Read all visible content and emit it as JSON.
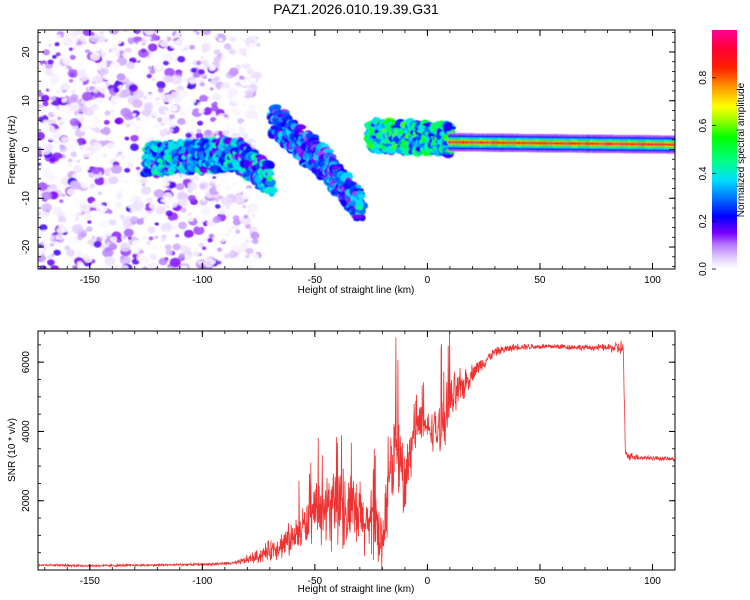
{
  "figure": {
    "title": "PAZ1.2026.010.19.39.G31"
  },
  "chart_data": [
    {
      "type": "heatmap",
      "title": "PAZ1.2026.010.19.39.G31",
      "xlabel": "Height of straight line (km)",
      "ylabel": "Frequency (Hz)",
      "xlim": [
        -173,
        110
      ],
      "ylim": [
        -24.5,
        24.5
      ],
      "xticks": [
        -150,
        -100,
        -50,
        0,
        50,
        100
      ],
      "yticks": [
        -20,
        -10,
        0,
        10,
        20
      ],
      "colorbar": {
        "label": "Normalized spectral amplitude",
        "range": [
          0,
          1
        ],
        "ticks": [
          "0.0",
          "0.2",
          "0.4",
          "0.6",
          "0.8"
        ],
        "colors": [
          "#ffffff",
          "#cc99ff",
          "#8800ff",
          "#0000ff",
          "#00ccff",
          "#00ff66",
          "#ffff00",
          "#ff8800",
          "#ff0000",
          "#ff0088"
        ]
      },
      "features": [
        {
          "name": "noise scatter",
          "x_range": [
            -173,
            -90
          ],
          "freq_range": [
            -24.5,
            24.5
          ],
          "amplitude": [
            0.0,
            0.18
          ]
        },
        {
          "name": "band segment 1",
          "x": [
            -125,
            -85,
            -70
          ],
          "freq": [
            -2,
            -1,
            -6
          ],
          "amplitude": 0.35
        },
        {
          "name": "band segment 2",
          "x": [
            -68,
            -45,
            -30
          ],
          "freq": [
            6,
            -3,
            -12
          ],
          "amplitude": 0.3
        },
        {
          "name": "band segment 3",
          "x": [
            -25,
            10
          ],
          "freq": [
            3,
            2
          ],
          "amplitude": 0.45
        },
        {
          "name": "stable carrier",
          "x": [
            10,
            110
          ],
          "freq": [
            1.5,
            1.0
          ],
          "amplitude": 0.9
        }
      ]
    },
    {
      "type": "line",
      "xlabel": "Height of straight line (km)",
      "ylabel": "SNR (10 * v/v)",
      "xlim": [
        -173,
        110
      ],
      "ylim": [
        0,
        6900
      ],
      "xticks": [
        -150,
        -100,
        -50,
        0,
        50,
        100
      ],
      "yticks": [
        2000,
        4000,
        6000
      ],
      "color": "#ee3333",
      "series": [
        {
          "name": "SNR",
          "x": [
            -173,
            -150,
            -100,
            -85,
            -75,
            -60,
            -50,
            -40,
            -30,
            -20,
            -15,
            -10,
            -5,
            0,
            5,
            10,
            20,
            30,
            40,
            50,
            60,
            70,
            80,
            87,
            88,
            95,
            110
          ],
          "y": [
            150,
            120,
            160,
            200,
            400,
            900,
            1600,
            1800,
            1500,
            900,
            3500,
            2500,
            4200,
            4100,
            4000,
            4800,
            5700,
            6300,
            6450,
            6450,
            6450,
            6420,
            6420,
            6400,
            3300,
            3250,
            3200
          ],
          "noise_amplitude": [
            40,
            40,
            40,
            60,
            250,
            600,
            900,
            1400,
            1300,
            1200,
            1500,
            1200,
            700,
            500,
            900,
            1000,
            300,
            150,
            120,
            100,
            100,
            100,
            120,
            300,
            150,
            100,
            60
          ]
        }
      ]
    }
  ]
}
